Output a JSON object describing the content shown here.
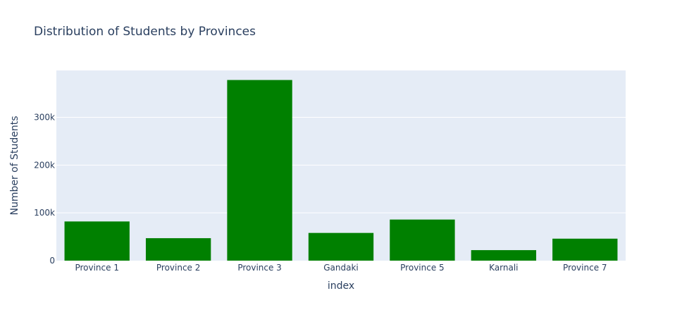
{
  "chart_data": {
    "type": "bar",
    "title": "Distribution of Students by Provinces",
    "xlabel": "index",
    "ylabel": "Number of Students",
    "categories": [
      "Province 1",
      "Province 2",
      "Province 3",
      "Gandaki",
      "Province 5",
      "Karnali",
      "Province 7"
    ],
    "values": [
      82000,
      47000,
      378000,
      58000,
      86000,
      22000,
      46000
    ],
    "ylim": [
      0,
      398000
    ],
    "yticks": [
      0,
      100000,
      200000,
      300000
    ],
    "ytick_labels": [
      "0",
      "100k",
      "200k",
      "300k"
    ],
    "grid": true,
    "legend": "none",
    "colors": {
      "bar": "#008000",
      "plot_background": "#e5ecf6",
      "gridline": "#ffffff",
      "text": "#2a3f5f"
    }
  }
}
